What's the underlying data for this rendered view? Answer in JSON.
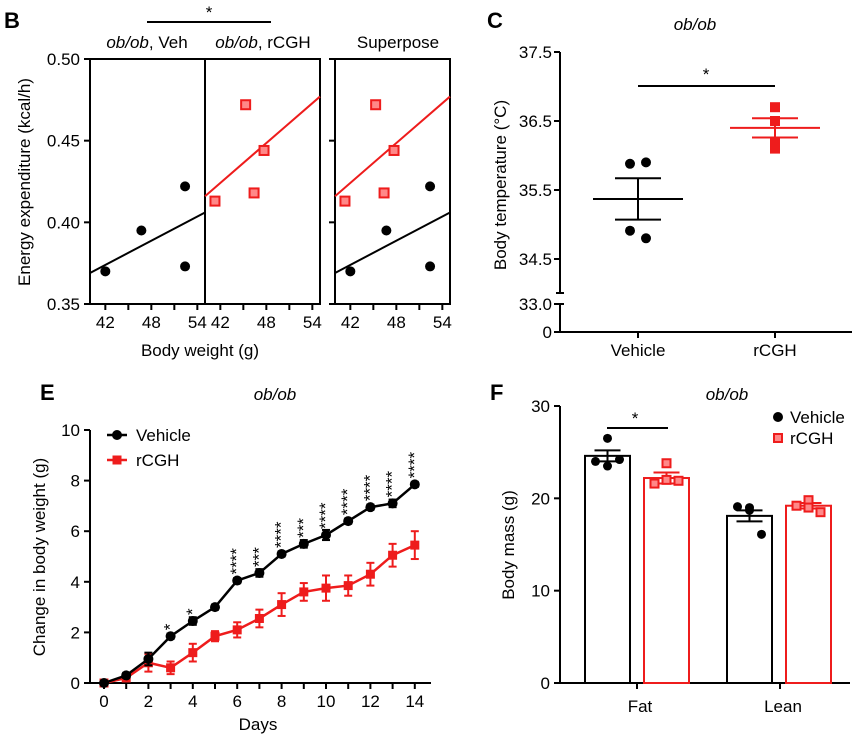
{
  "colors": {
    "vehicle": "#000000",
    "rcgh": "#ee1c1c"
  },
  "chart_data": [
    {
      "panel": "B",
      "type": "scatter",
      "subplots": [
        "ob/ob, Veh",
        "ob/ob, rCGH",
        "Superpose"
      ],
      "subplot_titles": [
        {
          "italic": "ob/ob",
          "rest": ", Veh"
        },
        {
          "italic": "ob/ob",
          "rest": ", rCGH"
        },
        {
          "italic": "",
          "rest": "Superpose"
        }
      ],
      "xlabel": "Body weight (g)",
      "ylabel": "Energy expenditure (kcal/h)",
      "xlim": [
        40,
        55
      ],
      "ylim": [
        0.35,
        0.5
      ],
      "xticks": [
        42,
        48,
        54
      ],
      "yticks": [
        "0.35",
        "0.40",
        "0.45",
        "0.50"
      ],
      "significance": "*",
      "series": [
        {
          "group": "Vehicle",
          "marker": "circle",
          "x": [
            42.0,
            46.7,
            52.4,
            52.4
          ],
          "y": [
            0.37,
            0.395,
            0.422,
            0.373
          ],
          "fit": {
            "x": [
              40,
              55
            ],
            "y": [
              0.369,
              0.406
            ]
          }
        },
        {
          "group": "rCGH",
          "marker": "square",
          "x": [
            41.3,
            45.3,
            46.4,
            47.7
          ],
          "y": [
            0.413,
            0.472,
            0.418,
            0.444
          ],
          "fit": {
            "x": [
              40,
              55
            ],
            "y": [
              0.416,
              0.477
            ]
          }
        }
      ]
    },
    {
      "panel": "C",
      "type": "scatter",
      "title": "ob/ob",
      "ylabel": "Body temperature (°C)",
      "categories": [
        "Vehicle",
        "rCGH"
      ],
      "yticks": [
        "0",
        "33.0",
        "34.5",
        "35.5",
        "36.5",
        "37.5"
      ],
      "ylim_upper": [
        34.0,
        37.5
      ],
      "axis_break": true,
      "significance": "*",
      "series": [
        {
          "group": "Vehicle",
          "marker": "circle",
          "values": [
            35.88,
            35.9,
            34.8,
            34.91
          ],
          "mean": 35.37,
          "sem": 0.3
        },
        {
          "group": "rCGH",
          "marker": "square",
          "values": [
            36.7,
            36.5,
            36.2,
            36.1
          ],
          "mean": 36.4,
          "sem": 0.14
        }
      ]
    },
    {
      "panel": "E",
      "type": "line",
      "title": "ob/ob",
      "xlabel": "Days",
      "ylabel": "Change in body weight (g)",
      "xlim": [
        0,
        14
      ],
      "ylim": [
        0,
        10
      ],
      "xticks": [
        "0",
        "2",
        "4",
        "6",
        "8",
        "10",
        "12",
        "14"
      ],
      "yticks": [
        "0",
        "2",
        "4",
        "6",
        "8",
        "10"
      ],
      "legend": "top-left",
      "x": [
        0,
        1,
        2,
        3,
        4,
        5,
        6,
        7,
        8,
        9,
        10,
        11,
        12,
        13,
        14
      ],
      "significance": [
        "",
        "",
        "",
        "*",
        "*",
        "",
        "****",
        "***",
        "****",
        "***",
        "****",
        "****",
        "****",
        "****",
        "****"
      ],
      "series": [
        {
          "name": "Vehicle",
          "marker": "circle",
          "values": [
            0,
            0.3,
            0.95,
            1.85,
            2.45,
            3.0,
            4.05,
            4.35,
            5.1,
            5.5,
            5.85,
            6.4,
            6.95,
            7.1,
            7.85
          ],
          "sem": [
            0.05,
            0.1,
            0.25,
            0.1,
            0.15,
            0.1,
            0.1,
            0.15,
            0.1,
            0.15,
            0.2,
            0.1,
            0.1,
            0.15,
            0.1
          ]
        },
        {
          "name": "rCGH",
          "marker": "square",
          "values": [
            0,
            0.2,
            0.8,
            0.6,
            1.2,
            1.85,
            2.1,
            2.55,
            3.1,
            3.6,
            3.75,
            3.85,
            4.3,
            5.05,
            5.45
          ],
          "sem": [
            0.05,
            0.1,
            0.35,
            0.25,
            0.35,
            0.2,
            0.3,
            0.35,
            0.45,
            0.35,
            0.5,
            0.4,
            0.45,
            0.45,
            0.55
          ]
        }
      ]
    },
    {
      "panel": "F",
      "type": "bar",
      "title": "ob/ob",
      "ylabel": "Body mass (g)",
      "categories": [
        "Fat",
        "Lean"
      ],
      "ylim": [
        0,
        30
      ],
      "yticks": [
        "0",
        "10",
        "20",
        "30"
      ],
      "legend": "top-right",
      "significance": {
        "category": "Fat",
        "label": "*"
      },
      "series": [
        {
          "name": "Vehicle",
          "values": [
            24.6,
            18.1
          ],
          "sem": [
            0.6,
            0.6
          ],
          "points": [
            [
              26.5,
              24.0,
              23.5,
              24.2
            ],
            [
              19.0,
              19.1,
              18.7,
              16.1
            ]
          ]
        },
        {
          "name": "rCGH",
          "values": [
            22.2,
            19.2
          ],
          "sem": [
            0.6,
            0.3
          ],
          "points": [
            [
              23.8,
              21.6,
              22.0,
              21.9
            ],
            [
              19.8,
              19.2,
              19.0,
              18.5
            ]
          ]
        }
      ]
    }
  ],
  "panel_labels": {
    "b": "B",
    "c": "C",
    "e": "E",
    "f": "F"
  }
}
